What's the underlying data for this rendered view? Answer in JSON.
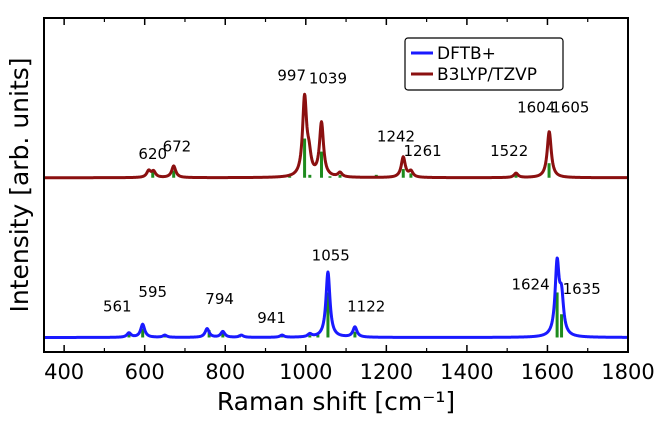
{
  "chart_data": {
    "type": "line",
    "xlabel": "Raman shift [cm⁻¹]",
    "ylabel": "Intensity [arb. units]",
    "xlim": [
      350,
      1800
    ],
    "ylim": [
      0,
      2.3
    ],
    "x_ticks": [
      400,
      600,
      800,
      1000,
      1200,
      1400,
      1600,
      1800
    ],
    "x_tick_labels": [
      "400",
      "600",
      "800",
      "1000",
      "1200",
      "1400",
      "1600",
      "1800"
    ],
    "legend": {
      "position": "top-right",
      "entries": [
        {
          "name": "DFTB+",
          "color": "#1a1aff"
        },
        {
          "name": "B3LYP/TZVP",
          "color": "#8b1010"
        }
      ]
    },
    "stick_color": "#1e8b1e",
    "axis_color": "#000000",
    "series": [
      {
        "name": "B3LYP/TZVP",
        "color": "#8b1010",
        "baseline": 1.2,
        "width": 12,
        "peaks": [
          {
            "x": 610,
            "h": 0.045
          },
          {
            "x": 622,
            "h": 0.04
          },
          {
            "x": 672,
            "h": 0.08
          },
          {
            "x": 997,
            "h": 0.54
          },
          {
            "x": 1008,
            "h": 0.12
          },
          {
            "x": 1039,
            "h": 0.37
          },
          {
            "x": 1085,
            "h": 0.03
          },
          {
            "x": 1242,
            "h": 0.14
          },
          {
            "x": 1261,
            "h": 0.04
          },
          {
            "x": 1522,
            "h": 0.03
          },
          {
            "x": 1604,
            "h": 0.19
          },
          {
            "x": 1605,
            "h": 0.13
          }
        ],
        "sticks": [
          {
            "x": 620,
            "h": 0.05
          },
          {
            "x": 672,
            "h": 0.05
          },
          {
            "x": 960,
            "h": 0.01
          },
          {
            "x": 997,
            "h": 0.27
          },
          {
            "x": 1010,
            "h": 0.02
          },
          {
            "x": 1039,
            "h": 0.18
          },
          {
            "x": 1060,
            "h": 0.01
          },
          {
            "x": 1085,
            "h": 0.02
          },
          {
            "x": 1175,
            "h": 0.02
          },
          {
            "x": 1242,
            "h": 0.06
          },
          {
            "x": 1261,
            "h": 0.03
          },
          {
            "x": 1522,
            "h": 0.02
          },
          {
            "x": 1604,
            "h": 0.1
          }
        ]
      },
      {
        "name": "DFTB+",
        "color": "#1a1aff",
        "baseline": 0.1,
        "width": 12,
        "peaks": [
          {
            "x": 561,
            "h": 0.03
          },
          {
            "x": 595,
            "h": 0.09
          },
          {
            "x": 650,
            "h": 0.015
          },
          {
            "x": 755,
            "h": 0.06
          },
          {
            "x": 794,
            "h": 0.04
          },
          {
            "x": 840,
            "h": 0.015
          },
          {
            "x": 941,
            "h": 0.015
          },
          {
            "x": 1010,
            "h": 0.02
          },
          {
            "x": 1055,
            "h": 0.45
          },
          {
            "x": 1122,
            "h": 0.07
          },
          {
            "x": 1624,
            "h": 0.49
          },
          {
            "x": 1635,
            "h": 0.25
          }
        ],
        "sticks": [
          {
            "x": 561,
            "h": 0.03
          },
          {
            "x": 595,
            "h": 0.06
          },
          {
            "x": 650,
            "h": 0.02
          },
          {
            "x": 760,
            "h": 0.05
          },
          {
            "x": 794,
            "h": 0.03
          },
          {
            "x": 835,
            "h": 0.02
          },
          {
            "x": 941,
            "h": 0.01
          },
          {
            "x": 1010,
            "h": 0.015
          },
          {
            "x": 1030,
            "h": 0.02
          },
          {
            "x": 1055,
            "h": 0.31
          },
          {
            "x": 1122,
            "h": 0.04
          },
          {
            "x": 1624,
            "h": 0.31
          },
          {
            "x": 1635,
            "h": 0.16
          }
        ]
      }
    ],
    "annotations": [
      {
        "text": "620",
        "x": 620,
        "y": 1.33,
        "anchor": "middle"
      },
      {
        "text": "672",
        "x": 680,
        "y": 1.38,
        "anchor": "middle"
      },
      {
        "text": "997",
        "x": 965,
        "y": 1.87,
        "anchor": "middle"
      },
      {
        "text": "1039",
        "x": 1055,
        "y": 1.85,
        "anchor": "middle"
      },
      {
        "text": "1242",
        "x": 1224,
        "y": 1.45,
        "anchor": "middle"
      },
      {
        "text": "1261",
        "x": 1290,
        "y": 1.35,
        "anchor": "middle"
      },
      {
        "text": "1522",
        "x": 1505,
        "y": 1.35,
        "anchor": "middle"
      },
      {
        "text": "1604",
        "x": 1572,
        "y": 1.65,
        "anchor": "middle"
      },
      {
        "text": "1605",
        "x": 1657,
        "y": 1.65,
        "anchor": "middle"
      },
      {
        "text": "561",
        "x": 532,
        "y": 0.28,
        "anchor": "middle"
      },
      {
        "text": "595",
        "x": 620,
        "y": 0.38,
        "anchor": "middle"
      },
      {
        "text": "794",
        "x": 786,
        "y": 0.33,
        "anchor": "middle"
      },
      {
        "text": "941",
        "x": 915,
        "y": 0.2,
        "anchor": "middle"
      },
      {
        "text": "1055",
        "x": 1062,
        "y": 0.63,
        "anchor": "middle"
      },
      {
        "text": "1122",
        "x": 1150,
        "y": 0.28,
        "anchor": "middle"
      },
      {
        "text": "1624",
        "x": 1558,
        "y": 0.43,
        "anchor": "middle"
      },
      {
        "text": "1635",
        "x": 1685,
        "y": 0.4,
        "anchor": "middle"
      }
    ]
  }
}
